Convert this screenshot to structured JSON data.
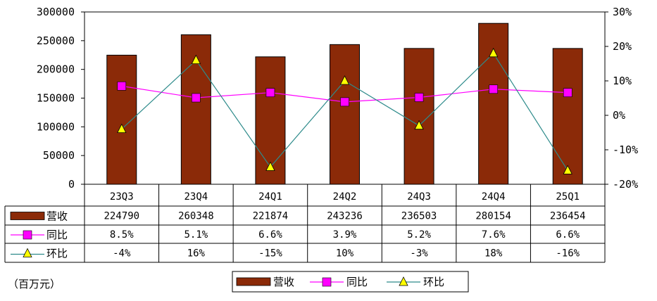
{
  "chart_data": {
    "type": "bar",
    "categories": [
      "23Q3",
      "23Q4",
      "24Q1",
      "24Q2",
      "24Q3",
      "24Q4",
      "25Q1"
    ],
    "series": [
      {
        "name": "营收",
        "kind": "bar",
        "axis": "left",
        "color": "#8B2A08",
        "values": [
          224790,
          260348,
          221874,
          243236,
          236503,
          280154,
          236454
        ],
        "labels": [
          "224790",
          "260348",
          "221874",
          "243236",
          "236503",
          "280154",
          "236454"
        ]
      },
      {
        "name": "同比",
        "kind": "line",
        "axis": "right",
        "color": "#FF00FF",
        "marker": "square",
        "values": [
          8.5,
          5.1,
          6.6,
          3.9,
          5.2,
          7.6,
          6.6
        ],
        "labels": [
          "8.5%",
          "5.1%",
          "6.6%",
          "3.9%",
          "5.2%",
          "7.6%",
          "6.6%"
        ]
      },
      {
        "name": "环比",
        "kind": "line",
        "axis": "right",
        "color": "#2E8B8B",
        "marker": "triangle",
        "marker_color": "#FFFF00",
        "values": [
          -4,
          16,
          -15,
          10,
          -3,
          18,
          -16
        ],
        "labels": [
          "-4%",
          "16%",
          "-15%",
          "10%",
          "-3%",
          "18%",
          "-16%"
        ]
      }
    ],
    "y_left": {
      "ylim": [
        0,
        300000
      ],
      "ticks": [
        0,
        50000,
        100000,
        150000,
        200000,
        250000,
        300000
      ],
      "tick_labels": [
        "0",
        "50000",
        "100000",
        "150000",
        "200000",
        "250000",
        "300000"
      ]
    },
    "y_right": {
      "ylim": [
        -20,
        30
      ],
      "ticks": [
        -20,
        -10,
        0,
        10,
        20,
        30
      ],
      "tick_labels": [
        "-20%",
        "-10%",
        "0%",
        "10%",
        "20%",
        "30%"
      ]
    },
    "unit_label": "（百万元）",
    "legend_position": "bottom",
    "data_table": true,
    "grid": false
  }
}
